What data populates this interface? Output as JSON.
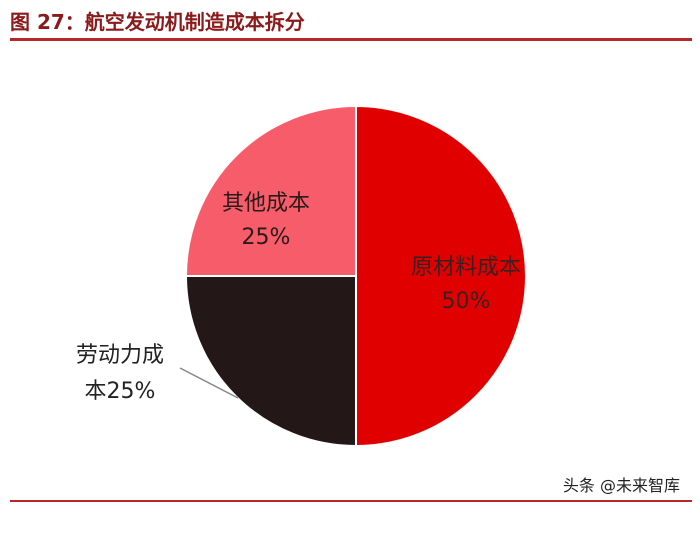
{
  "page": {
    "title": "图 27：航空发动机制造成本拆分",
    "watermark": "头条 @未来智库"
  },
  "chart_data": {
    "type": "pie",
    "title": "",
    "slices": [
      {
        "label_lines": [
          "原材料成本",
          "50%"
        ],
        "value": 50,
        "color": "#e00000",
        "text_color": "#3a2020"
      },
      {
        "label_lines": [
          "劳动力成",
          "本25%"
        ],
        "value": 25,
        "color": "#231717",
        "text_color": "#222222"
      },
      {
        "label_lines": [
          "其他成本",
          "25%"
        ],
        "value": 25,
        "color": "#f75c6a",
        "text_color": "#2a1a1a"
      }
    ]
  }
}
